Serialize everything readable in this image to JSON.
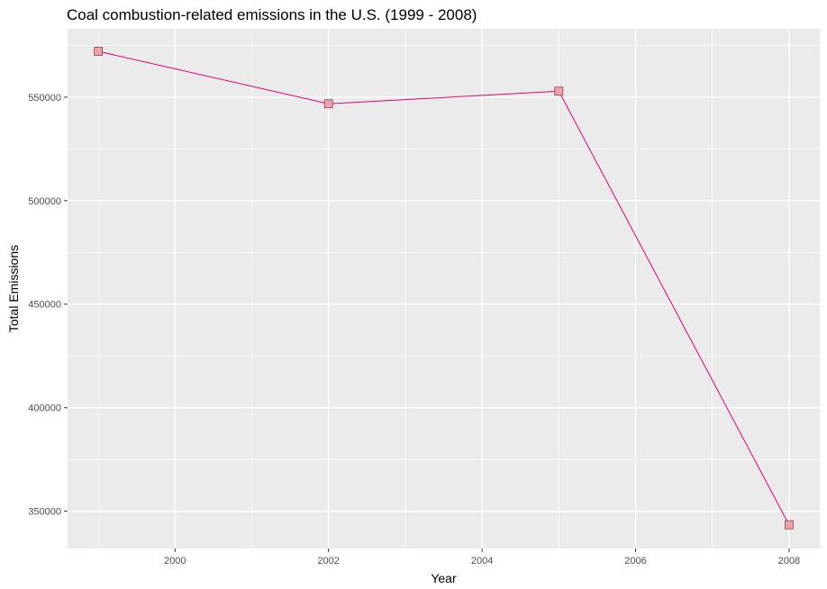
{
  "chart_data": {
    "type": "line",
    "title": "Coal combustion-related emissions in the U.S. (1999 - 2008)",
    "xlabel": "Year",
    "ylabel": "Total Emissions",
    "x": [
      1999,
      2002,
      2005,
      2008
    ],
    "series": [
      {
        "values": [
          572126,
          546789,
          552881,
          343432
        ]
      }
    ],
    "xlim": [
      1998.6,
      2008.4
    ],
    "ylim": [
      332000,
      583000
    ],
    "x_ticks": [
      2000,
      2002,
      2004,
      2006,
      2008
    ],
    "y_ticks": [
      350000,
      400000,
      450000,
      500000,
      550000
    ],
    "x_tick_labels": [
      "2000",
      "2002",
      "2004",
      "2006",
      "2008"
    ],
    "y_tick_labels": [
      "350000",
      "400000",
      "450000",
      "500000",
      "550000"
    ],
    "grid": true,
    "colors": {
      "panel": "#ebebeb",
      "grid_major": "#ffffff",
      "line": "#e0007a",
      "marker_fill": "#f4a0a8",
      "marker_stroke": "#7a4a50"
    }
  }
}
